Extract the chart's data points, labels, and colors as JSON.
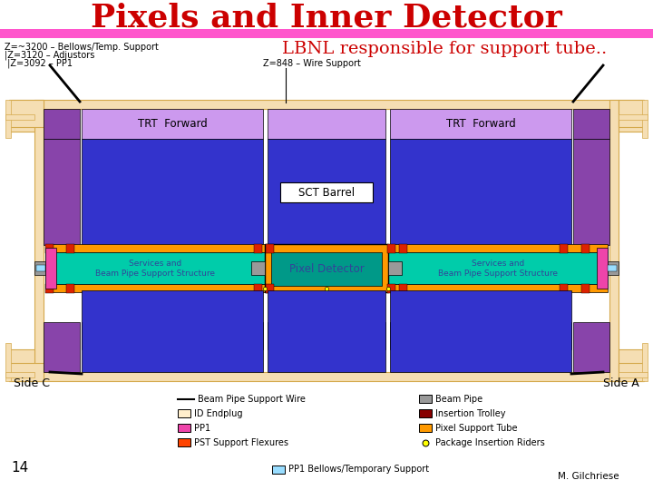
{
  "title": "Pixels and Inner Detector",
  "title_color": "#cc0000",
  "title_fontsize": 26,
  "subtitle": "LBNL responsible for support tube..",
  "subtitle_color": "#cc0000",
  "subtitle_fontsize": 14,
  "bg_color": "#ffffff",
  "annotations_left": [
    "Z=~3200 – Bellows/Temp. Support",
    "|Z=3120 – Adjustors",
    " |Z=3092 – PP1"
  ],
  "annotation_middle": "Z=848 – Wire Support",
  "colors": {
    "purple_dark": "#8844aa",
    "purple_light": "#cc99ee",
    "blue_main": "#3333cc",
    "teal": "#00ccaa",
    "teal_dark": "#009988",
    "orange": "#ff9900",
    "red_sq": "#dd2200",
    "pink_bar": "#ff55cc",
    "beige": "#f5deb3",
    "tan": "#d4a84b",
    "gray": "#999999",
    "dark_red": "#880000",
    "cyan_light": "#99ddff",
    "yellow": "#ffff00"
  }
}
